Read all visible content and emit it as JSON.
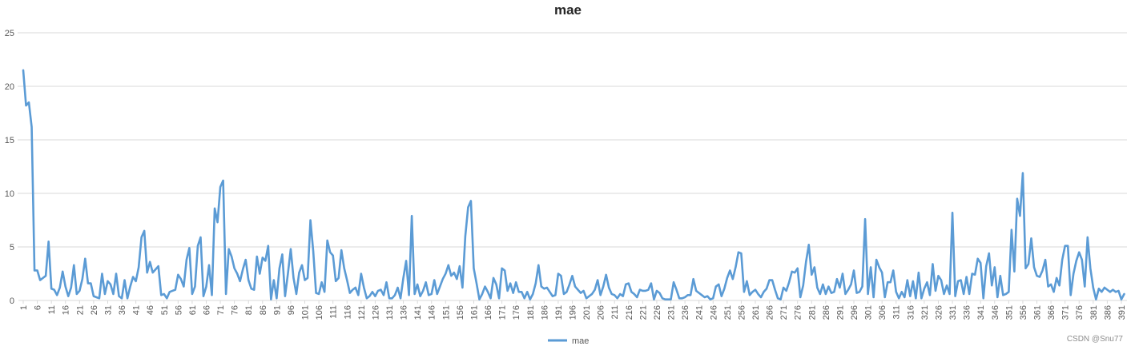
{
  "chart_data": {
    "type": "line",
    "title": "mae",
    "xlabel": "",
    "ylabel": "",
    "ylim": [
      0,
      25
    ],
    "yticks": [
      0,
      5,
      10,
      15,
      20,
      25
    ],
    "x_range": [
      1,
      393
    ],
    "x_tick_labels": [
      1,
      6,
      11,
      16,
      21,
      26,
      31,
      36,
      41,
      46,
      51,
      56,
      61,
      66,
      71,
      76,
      81,
      86,
      91,
      96,
      101,
      106,
      111,
      116,
      121,
      126,
      131,
      136,
      141,
      146,
      151,
      156,
      161,
      166,
      171,
      176,
      181,
      186,
      191,
      196,
      201,
      206,
      211,
      216,
      221,
      226,
      231,
      236,
      241,
      246,
      251,
      256,
      261,
      266,
      271,
      276,
      281,
      286,
      291,
      296,
      301,
      306,
      311,
      316,
      321,
      326,
      331,
      336,
      341,
      346,
      351,
      356,
      361,
      366,
      371,
      376,
      381,
      386,
      391
    ],
    "grid": "horizontal",
    "legend": "bottom",
    "color": "#5b9bd5",
    "series": [
      {
        "name": "mae",
        "values": [
          21.5,
          18.2,
          18.5,
          16.2,
          2.8,
          2.8,
          1.9,
          2.1,
          2.3,
          5.5,
          1.1,
          1.0,
          0.5,
          1.2,
          2.7,
          1.3,
          0.4,
          1.2,
          3.3,
          0.6,
          0.9,
          2.0,
          3.9,
          1.6,
          1.6,
          0.4,
          0.3,
          0.2,
          2.5,
          0.6,
          1.8,
          1.5,
          0.6,
          2.5,
          0.4,
          0.2,
          1.9,
          0.2,
          1.3,
          2.2,
          1.8,
          3.1,
          5.9,
          6.5,
          2.6,
          3.6,
          2.6,
          2.9,
          3.2,
          0.5,
          0.6,
          0.2,
          0.8,
          0.9,
          1.0,
          2.4,
          2.0,
          1.3,
          3.8,
          4.9,
          0.6,
          1.3,
          5.1,
          5.9,
          0.4,
          1.3,
          3.3,
          0.5,
          8.6,
          7.3,
          10.6,
          11.2,
          0.6,
          4.8,
          4.1,
          3.0,
          2.5,
          1.8,
          2.9,
          3.8,
          1.9,
          1.1,
          1.0,
          4.1,
          2.5,
          4.0,
          3.7,
          5.1,
          0.1,
          1.9,
          0.2,
          3.0,
          4.3,
          0.4,
          2.5,
          4.8,
          2.1,
          0.6,
          2.6,
          3.3,
          1.9,
          2.1,
          7.5,
          4.6,
          0.7,
          0.6,
          1.7,
          0.8,
          5.6,
          4.5,
          4.2,
          1.8,
          2.1,
          4.7,
          3.0,
          1.9,
          0.7,
          1.0,
          1.2,
          0.5,
          2.5,
          1.2,
          0.2,
          0.4,
          0.8,
          0.4,
          0.9,
          1.0,
          0.5,
          1.7,
          0.2,
          0.2,
          0.5,
          1.2,
          0.2,
          2.1,
          3.7,
          0.5,
          7.9,
          0.6,
          1.5,
          0.4,
          0.9,
          1.7,
          0.5,
          0.6,
          1.9,
          0.6,
          1.3,
          2.0,
          2.5,
          3.3,
          2.3,
          2.6,
          2.0,
          3.2,
          1.2,
          6.0,
          8.7,
          9.3,
          3.0,
          1.6,
          0.1,
          0.6,
          1.3,
          0.8,
          0.2,
          2.1,
          1.5,
          0.2,
          3.0,
          2.8,
          0.9,
          1.6,
          0.7,
          1.7,
          0.8,
          0.8,
          0.2,
          0.8,
          0.1,
          0.6,
          1.6,
          3.3,
          1.3,
          1.1,
          1.2,
          0.8,
          0.4,
          0.5,
          2.5,
          2.3,
          0.6,
          0.8,
          1.5,
          2.3,
          1.3,
          1.0,
          0.7,
          0.9,
          0.2,
          0.4,
          0.6,
          1.0,
          1.9,
          0.5,
          1.3,
          2.4,
          1.2,
          0.6,
          0.5,
          0.2,
          0.6,
          0.4,
          1.5,
          1.6,
          0.8,
          0.6,
          0.3,
          1.0,
          0.9,
          0.9,
          1.0,
          1.6,
          0.1,
          0.9,
          0.7,
          0.2,
          0.1,
          0.1,
          0.1,
          1.7,
          1.0,
          0.2,
          0.2,
          0.3,
          0.5,
          0.5,
          2.0,
          0.9,
          0.7,
          0.5,
          0.3,
          0.4,
          0.1,
          0.2,
          1.3,
          1.5,
          0.4,
          1.1,
          2.1,
          2.8,
          2.0,
          3.1,
          4.5,
          4.4,
          0.8,
          1.8,
          0.5,
          0.8,
          1.0,
          0.6,
          0.3,
          0.8,
          1.1,
          1.9,
          1.9,
          1.0,
          0.2,
          0.1,
          1.2,
          0.9,
          1.7,
          2.7,
          2.6,
          3.0,
          0.3,
          1.4,
          3.6,
          5.2,
          2.4,
          3.1,
          1.2,
          0.6,
          1.5,
          0.6,
          1.3,
          0.7,
          0.8,
          2.0,
          1.2,
          2.5,
          0.6,
          1.0,
          1.5,
          2.8,
          0.7,
          0.8,
          1.3,
          7.6,
          0.6,
          3.1,
          0.3,
          3.8,
          3.1,
          2.6,
          0.3,
          1.7,
          1.7,
          2.8,
          0.8,
          0.2,
          0.8,
          0.3,
          1.9,
          0.4,
          1.8,
          0.2,
          2.6,
          0.2,
          1.1,
          1.7,
          0.5,
          3.4,
          0.9,
          2.3,
          1.9,
          0.6,
          1.4,
          0.6,
          8.2,
          0.4,
          1.8,
          1.9,
          0.6,
          2.2,
          0.6,
          2.5,
          2.4,
          3.9,
          3.5,
          0.2,
          3.2,
          4.4,
          1.4,
          3.1,
          0.3,
          2.3,
          0.5,
          0.6,
          0.8,
          6.6,
          2.7,
          9.5,
          7.9,
          11.9,
          3.0,
          3.4,
          5.8,
          3.1,
          2.3,
          2.2,
          2.8,
          3.8,
          1.3,
          1.5,
          0.8,
          2.1,
          1.4,
          3.8,
          5.1,
          5.1,
          0.5,
          2.5,
          3.7,
          4.5,
          3.8,
          1.3,
          5.9,
          3.0,
          1.2,
          0.1,
          1.1,
          0.8,
          1.2,
          1.0,
          0.8,
          1.0,
          0.8,
          0.9,
          0.1,
          0.6
        ]
      }
    ]
  },
  "legend": {
    "label": "mae"
  },
  "watermark": "CSDN @Snu77"
}
